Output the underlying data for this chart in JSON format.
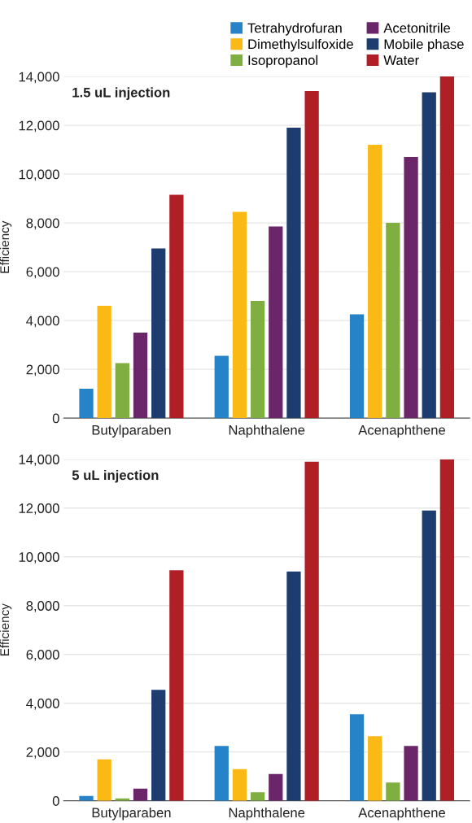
{
  "chart_data": [
    {
      "type": "bar",
      "title": "1.5 uL injection",
      "ylabel": "Efficiency",
      "categories": [
        "Butylparaben",
        "Naphthalene",
        "Acenaphthene"
      ],
      "series": [
        {
          "name": "Tetrahydrofuran",
          "color": "#2783c8",
          "values": [
            1200,
            2550,
            4250
          ]
        },
        {
          "name": "Dimethylsulfoxide",
          "color": "#fbb916",
          "values": [
            4600,
            8450,
            11200
          ]
        },
        {
          "name": "Isopropanol",
          "color": "#80ae40",
          "values": [
            2250,
            4800,
            8000
          ]
        },
        {
          "name": "Acetonitrile",
          "color": "#6a2668",
          "values": [
            3500,
            7850,
            10700
          ]
        },
        {
          "name": "Mobile phase",
          "color": "#1d3c70",
          "values": [
            6950,
            11900,
            13350
          ]
        },
        {
          "name": "Water",
          "color": "#b11f26",
          "values": [
            9150,
            13400,
            14000
          ]
        }
      ],
      "ylim": [
        0,
        14000
      ],
      "yticks": [
        {
          "value": 0,
          "label": "0"
        },
        {
          "value": 2000,
          "label": "2,000"
        },
        {
          "value": 4000,
          "label": "4,000"
        },
        {
          "value": 6000,
          "label": "6,000"
        },
        {
          "value": 8000,
          "label": "8,000"
        },
        {
          "value": 10000,
          "label": "10,000"
        },
        {
          "value": 12000,
          "label": "12,000"
        },
        {
          "value": 14000,
          "label": "14,000"
        }
      ],
      "grid": "y",
      "legend": "top right"
    },
    {
      "type": "bar",
      "title": "5 uL injection",
      "ylabel": "Efficiency",
      "categories": [
        "Butylparaben",
        "Naphthalene",
        "Acenaphthene"
      ],
      "series": [
        {
          "color": "#2783c8",
          "values": [
            200,
            2250,
            3550
          ]
        },
        {
          "color": "#fbb916",
          "values": [
            1700,
            1300,
            2650
          ]
        },
        {
          "color": "#80ae40",
          "values": [
            100,
            350,
            750
          ]
        },
        {
          "color": "#6a2668",
          "values": [
            500,
            1100,
            2250
          ]
        },
        {
          "color": "#1d3c70",
          "values": [
            4550,
            9400,
            11900
          ]
        },
        {
          "color": "#b11f26",
          "values": [
            9450,
            13900,
            14000
          ]
        }
      ],
      "ylim": [
        0,
        14000
      ],
      "yticks": [
        {
          "value": 0,
          "label": "0"
        },
        {
          "value": 2000,
          "label": "2,000"
        },
        {
          "value": 4000,
          "label": "4,000"
        },
        {
          "value": 6000,
          "label": "6,000"
        },
        {
          "value": 8000,
          "label": "8,000"
        },
        {
          "value": 10000,
          "label": "10,000"
        },
        {
          "value": 12000,
          "label": "12,000"
        },
        {
          "value": 14000,
          "label": "14,000"
        }
      ],
      "grid": "y"
    }
  ]
}
